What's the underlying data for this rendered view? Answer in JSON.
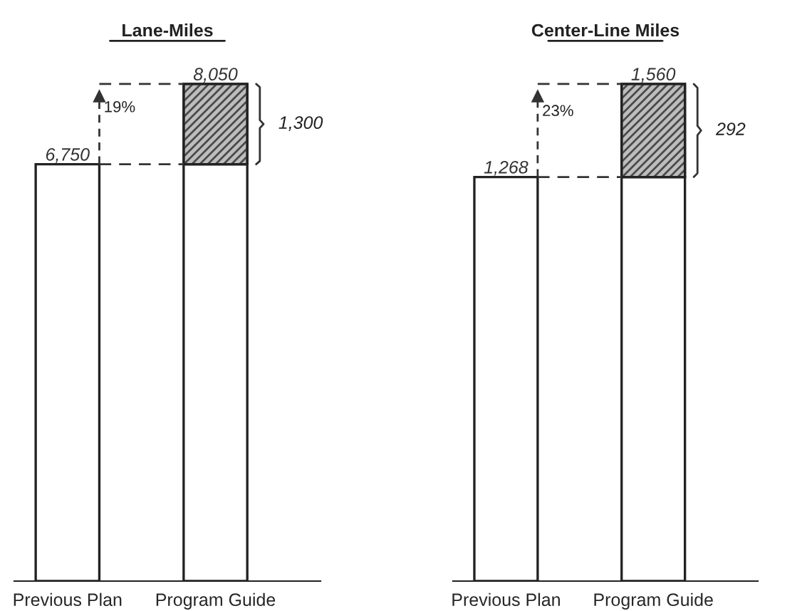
{
  "chart_data": [
    {
      "type": "bar",
      "title": "Lane-Miles",
      "categories": [
        "Previous Plan",
        "Program Guide"
      ],
      "stacked": true,
      "series": [
        {
          "color": "#ffffff",
          "values": [
            6750,
            6750
          ],
          "value_labels": [
            "6,750",
            null
          ]
        },
        {
          "color": "#4a4a4a",
          "values": [
            null,
            1300
          ]
        }
      ],
      "totals": [
        null,
        "8,050"
      ],
      "annotations": [
        "19%",
        "1,300"
      ],
      "grid": false,
      "legend": false
    },
    {
      "type": "bar",
      "title": "Center-Line Miles",
      "categories": [
        "Previous Plan",
        "Program Guide"
      ],
      "stacked": true,
      "series": [
        {
          "color": "#ffffff",
          "values": [
            1268,
            1268
          ],
          "value_labels": [
            "1,268",
            null
          ]
        },
        {
          "color": "#4a4a4a",
          "values": [
            null,
            292
          ]
        }
      ],
      "totals": [
        null,
        "1,560"
      ],
      "annotations": [
        "23%",
        "292"
      ],
      "grid": false,
      "legend": false
    }
  ]
}
